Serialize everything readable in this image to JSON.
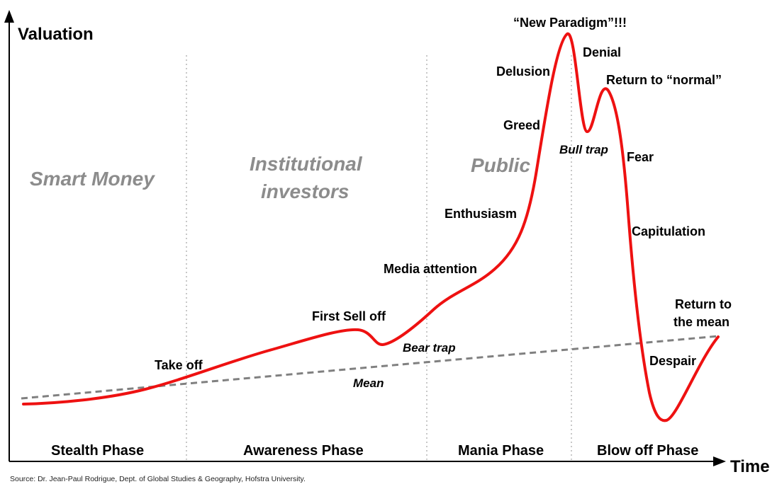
{
  "axes": {
    "y_title": "Valuation",
    "x_title": "Time"
  },
  "groups": {
    "smart_money": "Smart Money",
    "institutional_line1": "Institutional",
    "institutional_line2": "investors",
    "public": "Public"
  },
  "phases": {
    "stealth": "Stealth Phase",
    "awareness": "Awareness Phase",
    "mania": "Mania Phase",
    "blow_off": "Blow off Phase"
  },
  "labels": {
    "take_off": "Take off",
    "first_sell_off": "First Sell off",
    "bear_trap": "Bear trap",
    "mean": "Mean",
    "media_attention": "Media attention",
    "enthusiasm": "Enthusiasm",
    "greed": "Greed",
    "delusion": "Delusion",
    "new_paradigm": "“New Paradigm”!!!",
    "denial": "Denial",
    "bull_trap": "Bull trap",
    "return_to_normal": "Return to “normal”",
    "fear": "Fear",
    "capitulation": "Capitulation",
    "despair": "Despair",
    "return_to_mean_line1": "Return to",
    "return_to_mean_line2": "the mean"
  },
  "source": "Source: Dr. Jean-Paul Rodrigue, Dept. of Global Studies & Geography, Hofstra University.",
  "colors": {
    "curve": "#ee1111",
    "mean_line": "#808080",
    "group_text": "#8c8c8c",
    "divider": "#c8c8c8"
  }
}
